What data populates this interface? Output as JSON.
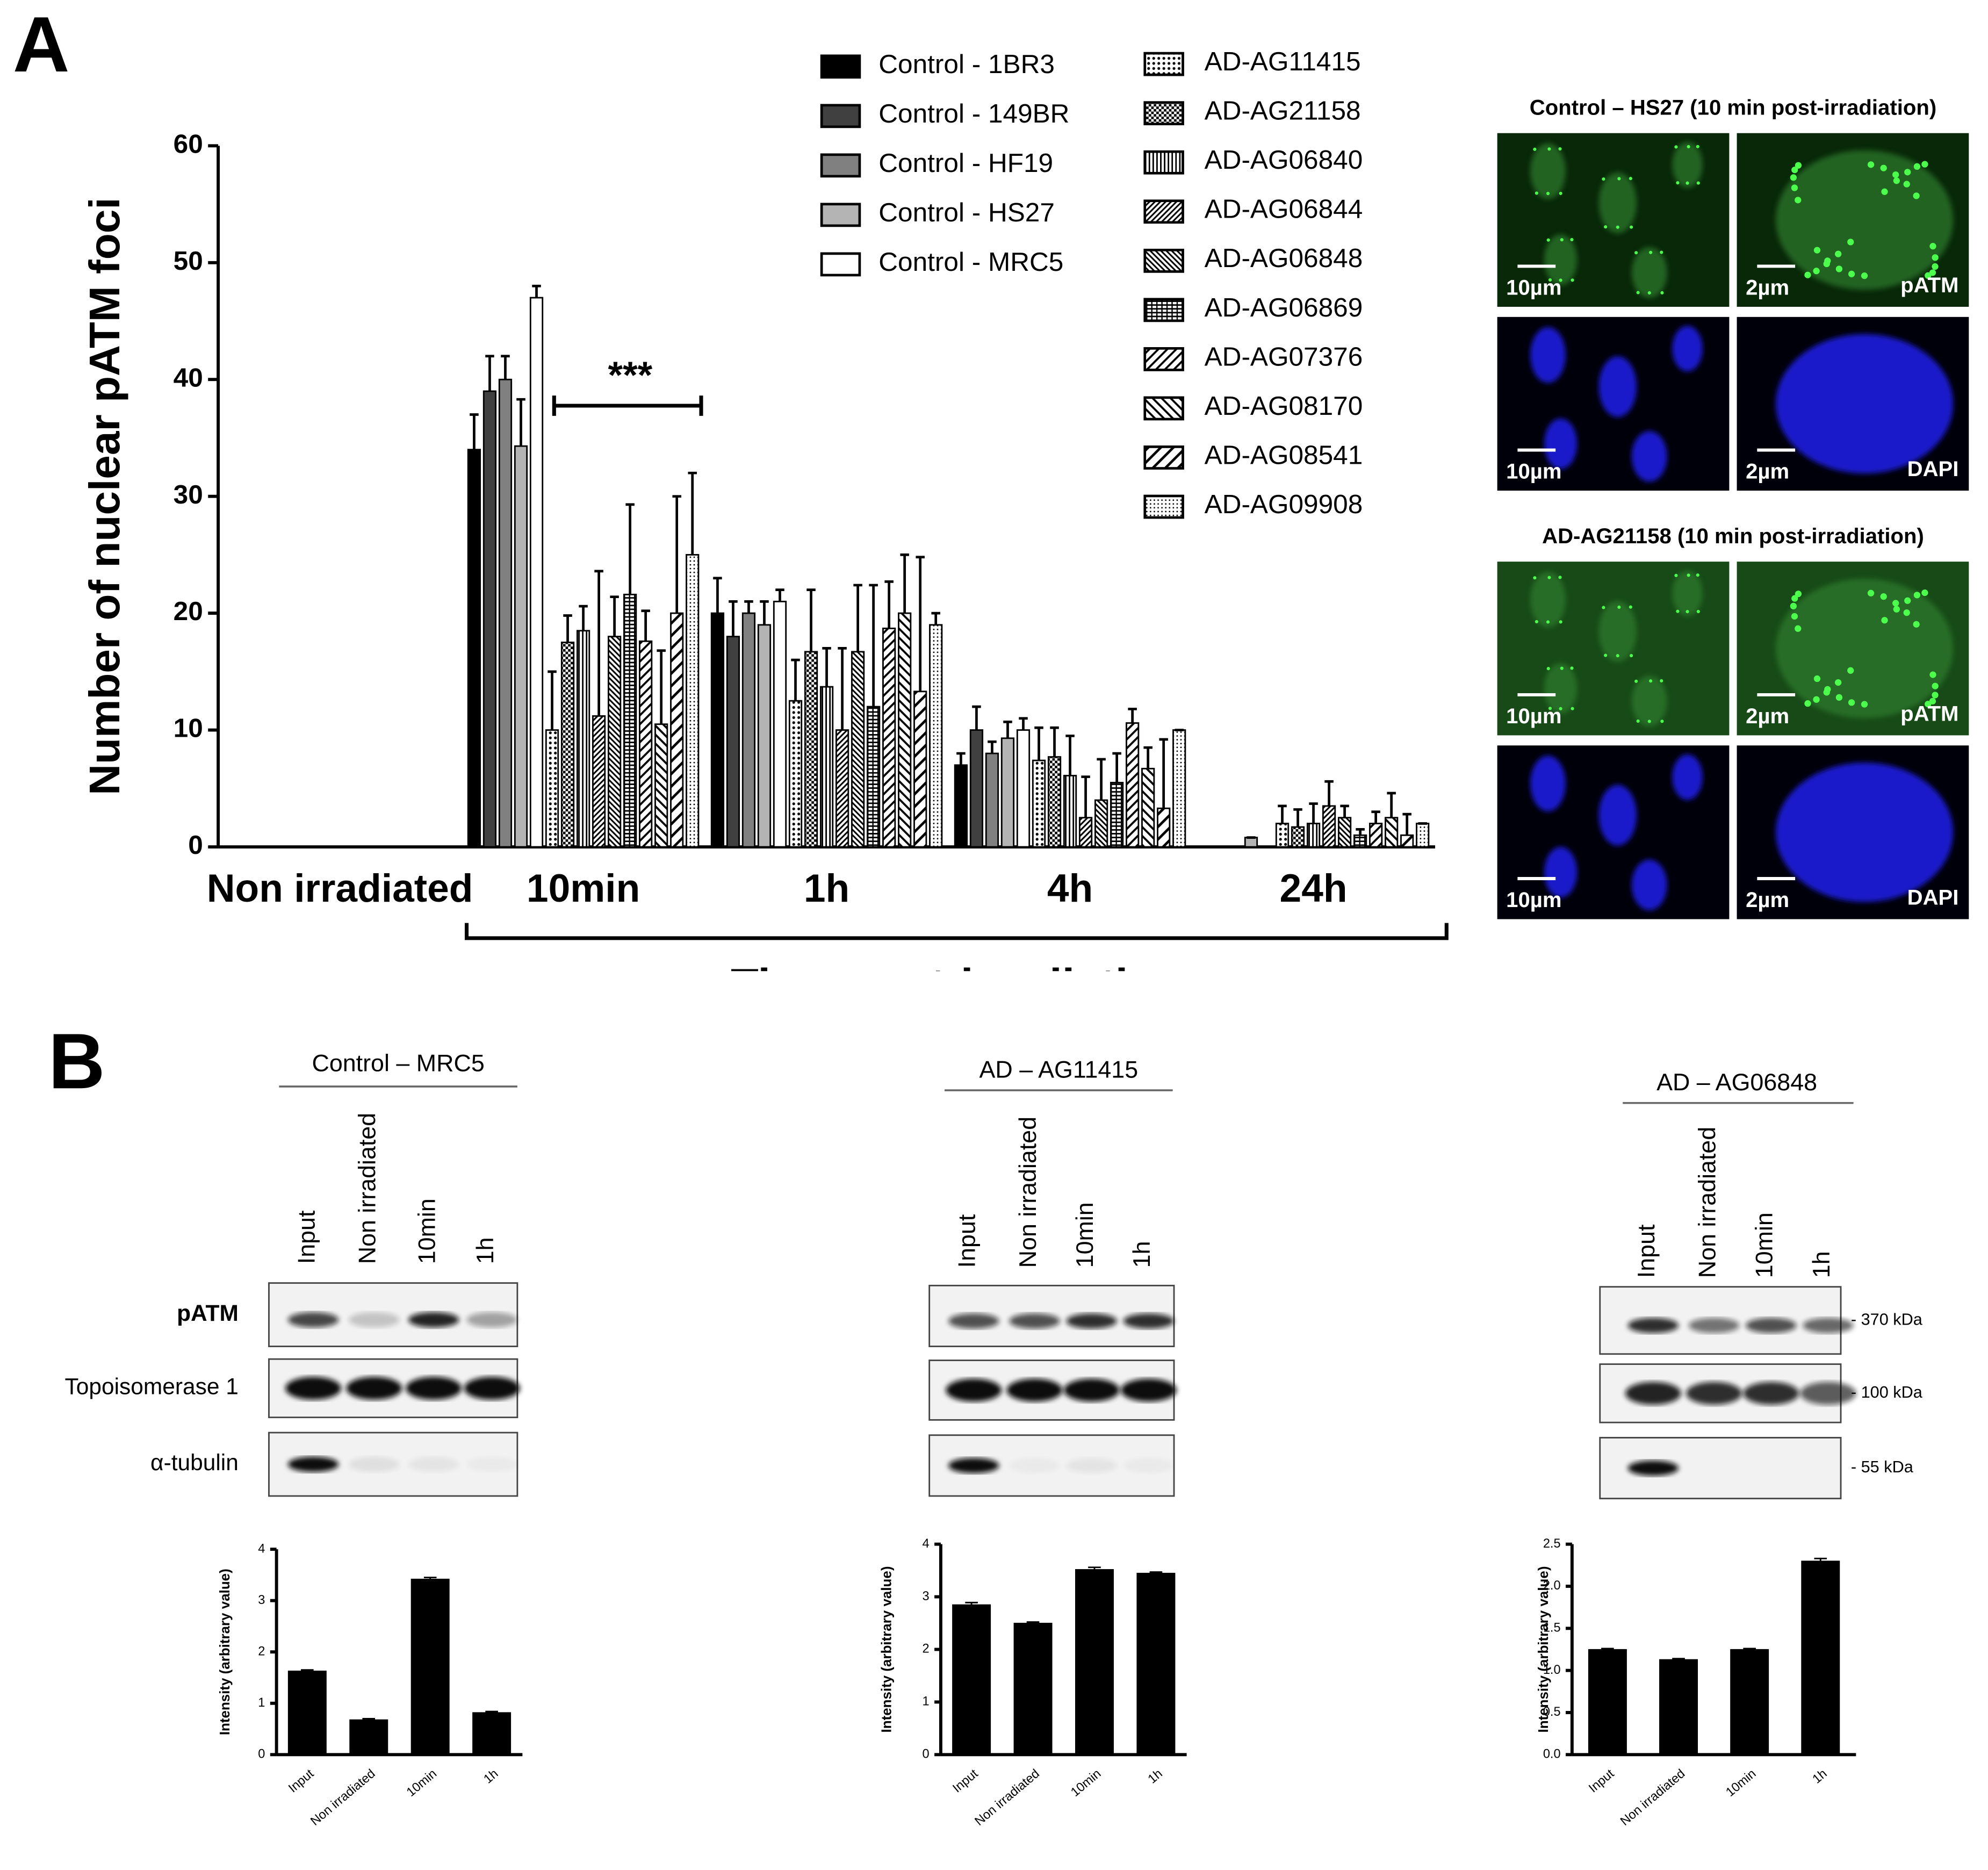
{
  "panel_labels": [
    "A",
    "B"
  ],
  "chart_data": [
    {
      "type": "bar",
      "y_label": "Number of nuclear pATM foci",
      "x_label": "Time post-irradiation",
      "categories": [
        "Non irradiated",
        "10min",
        "1h",
        "4h",
        "24h"
      ],
      "ylim": [
        0,
        60
      ],
      "yticks": [
        0,
        10,
        20,
        30,
        40,
        50,
        60
      ],
      "annotations": [
        "***"
      ],
      "series": [
        {
          "name": "Control - 1BR3",
          "color": "#000000",
          "values": [
            0,
            34,
            20,
            7,
            0
          ],
          "errors": [
            0,
            3,
            3,
            1,
            0
          ]
        },
        {
          "name": "Control - 149BR",
          "color": "#404040",
          "values": [
            0,
            39,
            18,
            10,
            0
          ],
          "errors": [
            0,
            3,
            3,
            2,
            0
          ]
        },
        {
          "name": "Control - HF19",
          "color": "#808080",
          "values": [
            0,
            40,
            20,
            8,
            0
          ],
          "errors": [
            0,
            2,
            1,
            1,
            0
          ]
        },
        {
          "name": "Control - HS27",
          "color": "#b4b4b4",
          "values": [
            0,
            34.3,
            19,
            9.3,
            0.8
          ],
          "errors": [
            0,
            4,
            2,
            1.4,
            0
          ]
        },
        {
          "name": "Control - MRC5",
          "color": "#ffffff",
          "values": [
            0,
            47,
            21,
            10,
            0
          ],
          "errors": [
            0,
            1,
            1,
            1,
            0
          ]
        },
        {
          "name": "AD-AG11415",
          "color": "#ffffff",
          "pattern": "dots",
          "values": [
            0,
            10,
            12.5,
            7.4,
            2
          ],
          "errors": [
            0,
            5,
            3.5,
            2.8,
            1.5
          ]
        },
        {
          "name": "AD-AG21158",
          "color": "#ffffff",
          "pattern": "checker",
          "values": [
            0,
            17.5,
            16.7,
            7.7,
            1.7
          ],
          "errors": [
            0,
            2.3,
            5.3,
            2.5,
            1.5
          ]
        },
        {
          "name": "AD-AG06840",
          "color": "#ffffff",
          "pattern": "vlines",
          "values": [
            0,
            18.5,
            13.7,
            6.1,
            2
          ],
          "errors": [
            0,
            2.1,
            3.3,
            3.4,
            1.7
          ]
        },
        {
          "name": "AD-AG06844",
          "color": "#ffffff",
          "pattern": "diag-dense",
          "values": [
            0,
            11.2,
            10,
            2.5,
            3.5
          ],
          "errors": [
            0,
            12.4,
            7,
            3.5,
            2.1
          ]
        },
        {
          "name": "AD-AG06848",
          "color": "#ffffff",
          "pattern": "backdiag-dense",
          "values": [
            0,
            18,
            16.7,
            4,
            2.5
          ],
          "errors": [
            0,
            3.4,
            5.7,
            3.5,
            1
          ]
        },
        {
          "name": "AD-AG06869",
          "color": "#ffffff",
          "pattern": "hgrid",
          "values": [
            0,
            21.6,
            12,
            5.5,
            1
          ],
          "errors": [
            0,
            7.7,
            10.4,
            2.5,
            0.5
          ]
        },
        {
          "name": "AD-AG07376",
          "color": "#ffffff",
          "pattern": "diag",
          "values": [
            0,
            17.6,
            18.7,
            10.6,
            2
          ],
          "errors": [
            0,
            2.6,
            4,
            1.2,
            1
          ]
        },
        {
          "name": "AD-AG08170",
          "color": "#ffffff",
          "pattern": "backdiag",
          "values": [
            0,
            10.5,
            20,
            6.7,
            2.5
          ],
          "errors": [
            0,
            6.3,
            5,
            1.8,
            2.1
          ]
        },
        {
          "name": "AD-AG08541",
          "color": "#ffffff",
          "pattern": "diag-wide",
          "values": [
            0,
            20,
            13.3,
            3.3,
            1
          ],
          "errors": [
            0,
            10,
            11.5,
            5.9,
            1.8
          ]
        },
        {
          "name": "AD-AG09908",
          "color": "#ffffff",
          "pattern": "fine-dots",
          "values": [
            0,
            25,
            19,
            10,
            2
          ],
          "errors": [
            0,
            7,
            1,
            0,
            0
          ]
        }
      ]
    },
    {
      "type": "bar",
      "y_label": "Intensity (arbitrary value)",
      "color": "#000000",
      "categories": [
        "Input",
        "Non irradiated",
        "10min",
        "1h"
      ],
      "values": [
        1.63,
        0.68,
        3.42,
        0.82
      ],
      "errors": [
        0.02,
        0.02,
        0.03,
        0.02
      ],
      "ylim": [
        0,
        4
      ],
      "yticks": [
        0,
        1,
        2,
        3,
        4
      ]
    },
    {
      "type": "bar",
      "y_label": "Intensity (arbitrary value)",
      "color": "#000000",
      "categories": [
        "Input",
        "Non irradiated",
        "10min",
        "1h"
      ],
      "values": [
        2.85,
        2.5,
        3.52,
        3.45
      ],
      "errors": [
        0.04,
        0.02,
        0.04,
        0.02
      ],
      "ylim": [
        0,
        4
      ],
      "yticks": [
        0,
        1,
        2,
        3,
        4
      ]
    },
    {
      "type": "bar",
      "y_label": "Intensity (arbitrary value)",
      "color": "#000000",
      "categories": [
        "Input",
        "Non irradiated",
        "10min",
        "1h"
      ],
      "values": [
        1.25,
        1.13,
        1.25,
        2.3
      ],
      "errors": [
        0.01,
        0.01,
        0.01,
        0.03
      ],
      "ylim": [
        0,
        2.5
      ],
      "yticks": [
        {
          "value": 0,
          "label": "0.0"
        },
        0.5,
        {
          "value": 1,
          "label": "1.0"
        },
        1.5,
        {
          "value": 2,
          "label": "2.0"
        },
        2.5
      ]
    }
  ],
  "micrographs": [
    {
      "title": "Control – HS27 (10 min post-irradiation)",
      "panels": [
        {
          "scale": "10µm"
        },
        {
          "scale": "2µm",
          "stain": "pATM"
        },
        {
          "scale": "10µm"
        },
        {
          "scale": "2µm",
          "stain": "DAPI"
        }
      ]
    },
    {
      "title": "AD-AG21158 (10 min post-irradiation)",
      "panels": [
        {
          "scale": "10µm"
        },
        {
          "scale": "2µm",
          "stain": "pATM"
        },
        {
          "scale": "10µm"
        },
        {
          "scale": "2µm",
          "stain": "DAPI"
        }
      ]
    }
  ],
  "blots": [
    {
      "title": "Control – MRC5",
      "lanes": [
        "Input",
        "Non irradiated",
        "10min",
        "1h"
      ],
      "rows": [
        "pATM",
        "Topoisomerase 1",
        "α-tubulin"
      ]
    },
    {
      "title": "AD – AG11415",
      "lanes": [
        "Input",
        "Non irradiated",
        "10min",
        "1h"
      ]
    },
    {
      "title": "AD – AG06848",
      "lanes": [
        "Input",
        "Non irradiated",
        "10min",
        "1h"
      ],
      "sizes": [
        "- 370 kDa",
        "- 100 kDa",
        "- 55 kDa"
      ]
    }
  ]
}
